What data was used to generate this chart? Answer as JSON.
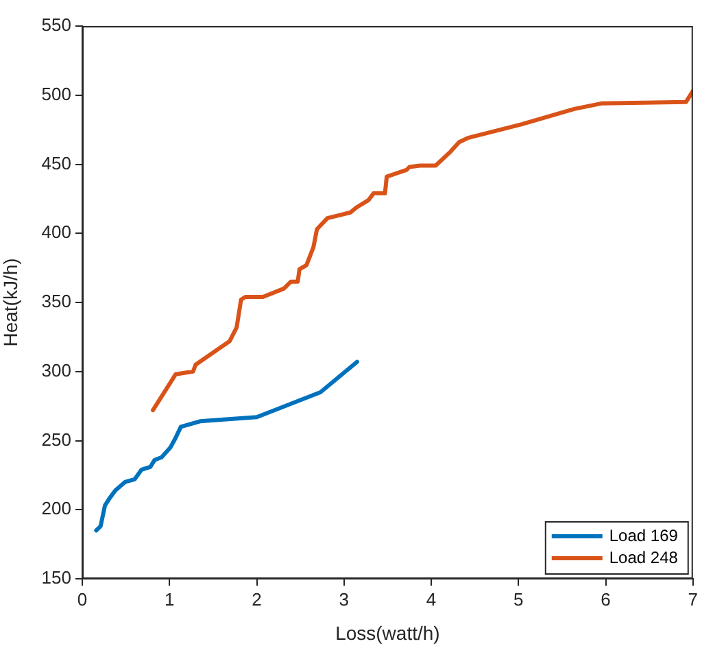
{
  "chart_data": {
    "type": "line",
    "xlabel": "Loss(watt/h)",
    "ylabel": "Heat(kJ/h)",
    "xlim": [
      0,
      7
    ],
    "xticks": [
      0,
      1,
      2,
      3,
      4,
      5,
      6,
      7
    ],
    "ylim": [
      150,
      550
    ],
    "yticks": [
      150,
      200,
      250,
      300,
      350,
      400,
      450,
      500,
      550
    ],
    "grid": false,
    "legend": "bottom right",
    "marker": "none",
    "line_style": "solid",
    "series": [
      {
        "name": "Load 169",
        "color": "#0072bd",
        "x": [
          0.16,
          0.21,
          0.26,
          0.31,
          0.38,
          0.49,
          0.6,
          0.68,
          0.78,
          0.83,
          0.91,
          1.01,
          1.07,
          1.13,
          1.35,
          2.0,
          2.73,
          3.15
        ],
        "values": [
          185,
          188,
          203,
          208,
          214,
          220,
          222,
          229,
          231,
          236,
          238,
          245,
          252,
          260,
          264,
          267,
          285,
          307
        ]
      },
      {
        "name": "Load 248",
        "color": "#d95319",
        "x": [
          0.81,
          1.07,
          1.27,
          1.3,
          1.69,
          1.77,
          1.82,
          1.87,
          2.07,
          2.31,
          2.39,
          2.47,
          2.49,
          2.57,
          2.65,
          2.69,
          2.81,
          3.07,
          3.15,
          3.28,
          3.34,
          3.47,
          3.49,
          3.72,
          3.75,
          3.87,
          4.05,
          4.22,
          4.32,
          4.42,
          5.04,
          5.64,
          5.95,
          6.92,
          7.0
        ],
        "values": [
          272,
          298,
          300,
          305,
          322,
          332,
          352,
          354,
          354,
          360,
          365,
          365,
          374,
          377,
          390,
          403,
          411,
          415,
          419,
          424,
          429,
          429,
          441,
          446,
          448,
          449,
          449,
          459,
          466,
          469,
          479,
          490,
          494,
          495,
          503
        ]
      }
    ]
  }
}
